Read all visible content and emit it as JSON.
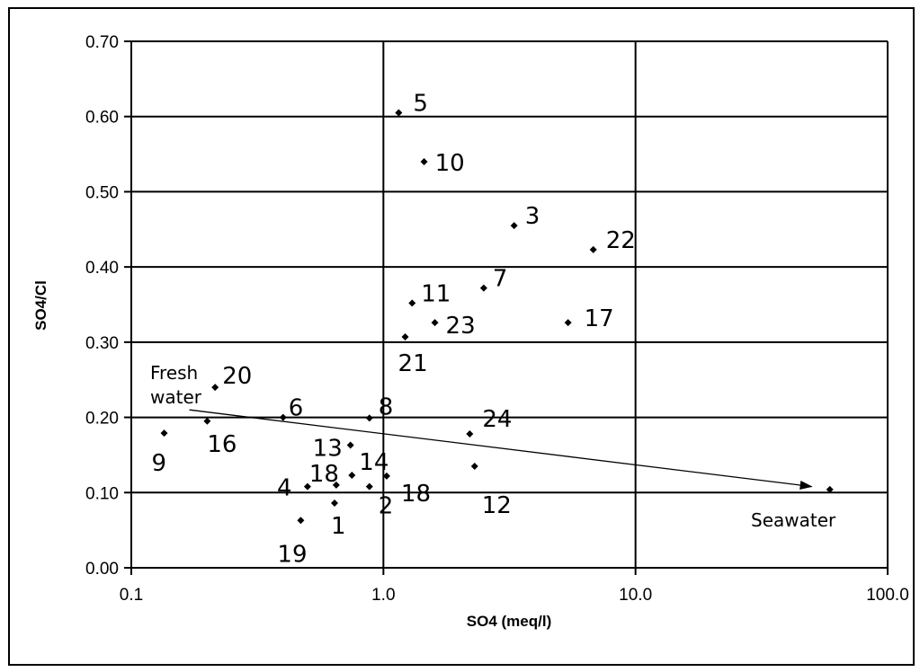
{
  "chart_data": {
    "type": "scatter",
    "title": "",
    "xlabel": "SO4 (meq/l)",
    "ylabel": "SO4/Cl",
    "xscale": "log",
    "xlim": [
      0.1,
      100.0
    ],
    "ylim": [
      0.0,
      0.7
    ],
    "grid": true,
    "x_ticks": [
      0.1,
      1.0,
      10.0,
      100.0
    ],
    "x_tick_labels": [
      "0.1",
      "1.0",
      "10.0",
      "100.0"
    ],
    "y_ticks": [
      0.0,
      0.1,
      0.2,
      0.3,
      0.4,
      0.5,
      0.6,
      0.7
    ],
    "y_tick_labels": [
      "0.00",
      "0.10",
      "0.20",
      "0.30",
      "0.40",
      "0.50",
      "0.60",
      "0.70"
    ],
    "points": [
      {
        "label": "5",
        "x": 1.15,
        "y": 0.605
      },
      {
        "label": "10",
        "x": 1.45,
        "y": 0.54
      },
      {
        "label": "3",
        "x": 3.3,
        "y": 0.455
      },
      {
        "label": "22",
        "x": 6.8,
        "y": 0.423
      },
      {
        "label": "7",
        "x": 2.5,
        "y": 0.372
      },
      {
        "label": "11",
        "x": 1.3,
        "y": 0.352
      },
      {
        "label": "23",
        "x": 1.6,
        "y": 0.326
      },
      {
        "label": "17",
        "x": 5.4,
        "y": 0.326
      },
      {
        "label": "21",
        "x": 1.22,
        "y": 0.307
      },
      {
        "label": "20",
        "x": 0.215,
        "y": 0.24
      },
      {
        "label": "6",
        "x": 0.4,
        "y": 0.2
      },
      {
        "label": "8",
        "x": 0.88,
        "y": 0.199
      },
      {
        "label": "16",
        "x": 0.2,
        "y": 0.195
      },
      {
        "label": "9",
        "x": 0.135,
        "y": 0.179
      },
      {
        "label": "24",
        "x": 2.2,
        "y": 0.178
      },
      {
        "label": "13",
        "x": 0.74,
        "y": 0.163
      },
      {
        "label": "12",
        "x": 2.3,
        "y": 0.135
      },
      {
        "label": "14",
        "x": 0.75,
        "y": 0.123
      },
      {
        "label": "18",
        "x": 1.03,
        "y": 0.122
      },
      {
        "label": "18",
        "x": 0.65,
        "y": 0.11
      },
      {
        "label": "4",
        "x": 0.5,
        "y": 0.108
      },
      {
        "label": "2",
        "x": 0.88,
        "y": 0.108
      },
      {
        "label": "1",
        "x": 0.64,
        "y": 0.086
      },
      {
        "label": "19",
        "x": 0.47,
        "y": 0.063
      },
      {
        "label": "",
        "x": 59.0,
        "y": 0.104
      }
    ],
    "annotations": {
      "fresh_water": "Fresh\nwater",
      "seawater": "Seawater"
    },
    "mixing_line": {
      "from": {
        "x": 0.17,
        "y": 0.21
      },
      "to": {
        "x": 50.0,
        "y": 0.108
      }
    }
  }
}
